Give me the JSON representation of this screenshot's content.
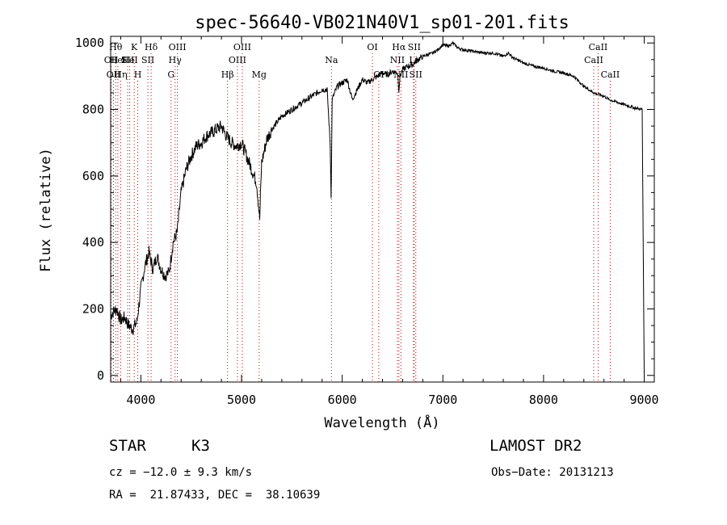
{
  "chart_data": {
    "type": "line",
    "title": "spec-56640-VB021N40V1_sp01-201.fits",
    "xlabel": "Wavelength (Å)",
    "ylabel": "Flux (relative)",
    "xlim": [
      3700,
      9100
    ],
    "ylim": [
      -20,
      1020
    ],
    "xticks": [
      4000,
      5000,
      6000,
      7000,
      8000,
      9000
    ],
    "yticks": [
      0,
      200,
      400,
      600,
      800,
      1000
    ],
    "grid": false,
    "series": [
      {
        "x": [
          3700,
          3720,
          3760,
          3800,
          3840,
          3880,
          3920,
          3960,
          4000,
          4040,
          4080,
          4120,
          4160,
          4200,
          4240,
          4280,
          4320,
          4360,
          4400,
          4450,
          4500,
          4550,
          4600,
          4650,
          4700,
          4750,
          4800,
          4850,
          4900,
          4950,
          5000,
          5050,
          5100,
          5150,
          5180,
          5200,
          5250,
          5300,
          5350,
          5400,
          5450,
          5500,
          5550,
          5600,
          5650,
          5700,
          5750,
          5800,
          5850,
          5880,
          5890,
          5900,
          5950,
          6000,
          6050,
          6100,
          6150,
          6200,
          6250,
          6300,
          6350,
          6400,
          6450,
          6500,
          6550,
          6563,
          6575,
          6600,
          6650,
          6700,
          6750,
          6800,
          6850,
          6900,
          6950,
          7000,
          7050,
          7100,
          7150,
          7200,
          7300,
          7400,
          7500,
          7600,
          7650,
          7700,
          7800,
          7900,
          8000,
          8100,
          8200,
          8300,
          8400,
          8450,
          8500,
          8550,
          8600,
          8650,
          8700,
          8800,
          8900,
          8980,
          9000
        ],
        "y": [
          180,
          190,
          200,
          165,
          175,
          150,
          140,
          160,
          260,
          330,
          370,
          320,
          360,
          320,
          300,
          310,
          400,
          430,
          550,
          620,
          660,
          690,
          700,
          720,
          730,
          740,
          750,
          720,
          700,
          690,
          700,
          660,
          620,
          580,
          470,
          640,
          710,
          740,
          760,
          780,
          790,
          800,
          810,
          820,
          830,
          840,
          850,
          860,
          860,
          700,
          540,
          830,
          870,
          880,
          890,
          830,
          860,
          890,
          880,
          890,
          900,
          910,
          905,
          915,
          910,
          860,
          900,
          920,
          930,
          935,
          950,
          960,
          965,
          970,
          980,
          995,
          990,
          1000,
          985,
          980,
          975,
          970,
          970,
          960,
          970,
          955,
          940,
          930,
          925,
          915,
          910,
          900,
          870,
          860,
          850,
          845,
          840,
          830,
          825,
          815,
          805,
          800,
          0
        ]
      }
    ],
    "lines": [
      {
        "x": 3705,
        "label": "OII",
        "row": 2
      },
      {
        "x": 3728,
        "label": "OII",
        "row": 3
      },
      {
        "x": 3750,
        "label": "Hθ",
        "row": 1
      },
      {
        "x": 3771,
        "label": "HeI",
        "row": 2
      },
      {
        "x": 3800,
        "label": "Hη",
        "row": 3
      },
      {
        "x": 3869,
        "label": "SII",
        "row": 2
      },
      {
        "x": 3889,
        "label": "HeI",
        "row": 2
      },
      {
        "x": 3934,
        "label": "K",
        "row": 1
      },
      {
        "x": 3969,
        "label": "H",
        "row": 3
      },
      {
        "x": 4070,
        "label": "SII",
        "row": 2
      },
      {
        "x": 4102,
        "label": "Hδ",
        "row": 1
      },
      {
        "x": 4300,
        "label": "G",
        "row": 3
      },
      {
        "x": 4340,
        "label": "Hγ",
        "row": 2
      },
      {
        "x": 4363,
        "label": "OIII",
        "row": 1
      },
      {
        "x": 4861,
        "label": "Hβ",
        "row": 3
      },
      {
        "x": 4959,
        "label": "OIII",
        "row": 2
      },
      {
        "x": 5007,
        "label": "OIII",
        "row": 1
      },
      {
        "x": 5175,
        "label": "Mg",
        "row": 3
      },
      {
        "x": 5893,
        "label": "Na",
        "row": 2
      },
      {
        "x": 6300,
        "label": "OI",
        "row": 1
      },
      {
        "x": 6363,
        "label": "OI",
        "row": 3
      },
      {
        "x": 6548,
        "label": "NII",
        "row": 2
      },
      {
        "x": 6563,
        "label": "Hα",
        "row": 1
      },
      {
        "x": 6583,
        "label": "NII",
        "row": 3
      },
      {
        "x": 6707,
        "label": "Li",
        "row": 2
      },
      {
        "x": 6716,
        "label": "SII",
        "row": 1
      },
      {
        "x": 6731,
        "label": "SII",
        "row": 3
      },
      {
        "x": 8498,
        "label": "CaII",
        "row": 2
      },
      {
        "x": 8542,
        "label": "CaII",
        "row": 1
      },
      {
        "x": 8662,
        "label": "CaII",
        "row": 3
      }
    ]
  },
  "info": {
    "class": "STAR",
    "subclass": "K3",
    "survey": "LAMOST DR2",
    "redshift": "cz = −12.0 ± 9.3 km/s",
    "obsdate": "Obs−Date: 20131213",
    "coords": "RA =  21.87433, DEC =  38.10639"
  },
  "colors": {
    "line_markers": "#cc0000",
    "spectrum": "#000000"
  }
}
